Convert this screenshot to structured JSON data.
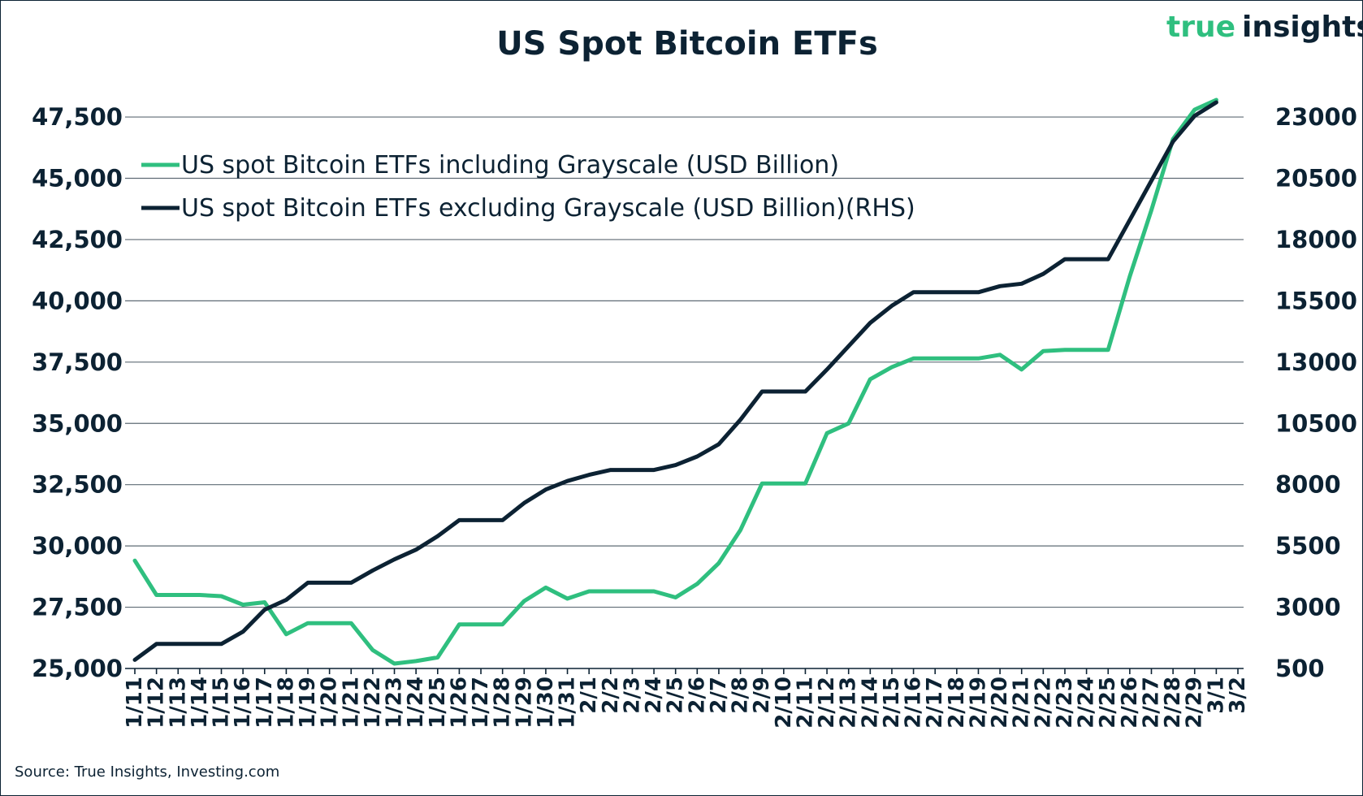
{
  "logo": {
    "part1": "true",
    "part2": "insights"
  },
  "source": "Source: True Insights, Investing.com",
  "colors": {
    "green": "#2fbf7f",
    "navy": "#0c2233",
    "grid": "#5f6b75"
  },
  "chart_data": {
    "type": "line",
    "title": "US Spot Bitcoin ETFs",
    "x": [
      "1/11",
      "1/12",
      "1/13",
      "1/14",
      "1/15",
      "1/16",
      "1/17",
      "1/18",
      "1/19",
      "1/20",
      "1/21",
      "1/22",
      "1/23",
      "1/24",
      "1/25",
      "1/26",
      "1/27",
      "1/28",
      "1/29",
      "1/30",
      "1/31",
      "2/1",
      "2/2",
      "2/3",
      "2/4",
      "2/5",
      "2/6",
      "2/7",
      "2/8",
      "2/9",
      "2/10",
      "2/11",
      "2/12",
      "2/13",
      "2/14",
      "2/15",
      "2/16",
      "2/17",
      "2/18",
      "2/19",
      "2/20",
      "2/21",
      "2/22",
      "2/23",
      "2/24",
      "2/25",
      "2/26",
      "2/27",
      "2/28",
      "2/29",
      "3/1",
      "3/2"
    ],
    "y_left": {
      "ylim": [
        25000,
        48000
      ],
      "ticks": [
        "25,000",
        "27,500",
        "30,000",
        "32,500",
        "35,000",
        "37,500",
        "40,000",
        "42,500",
        "45,000",
        "47,500"
      ]
    },
    "y_right": {
      "ylim": [
        500,
        23500
      ],
      "ticks": [
        "500",
        "3000",
        "5500",
        "8000",
        "10500",
        "13000",
        "15500",
        "18000",
        "20500",
        "23000"
      ]
    },
    "legend": "top-left",
    "series": [
      {
        "name": "US spot Bitcoin ETFs including Grayscale (USD Billion)",
        "axis": "left",
        "color": "#2fbf7f",
        "values": [
          29400,
          28000,
          28000,
          28000,
          27950,
          27600,
          27700,
          26400,
          26850,
          26850,
          26850,
          25750,
          25200,
          25300,
          25450,
          26800,
          26800,
          26800,
          27750,
          28300,
          27850,
          28150,
          28150,
          28150,
          28150,
          27900,
          28450,
          29300,
          30650,
          32550,
          32550,
          32550,
          34600,
          35000,
          36800,
          37300,
          37650,
          37650,
          37650,
          37650,
          37800,
          37200,
          37950,
          38000,
          38000,
          38000,
          41000,
          43700,
          46600,
          47800,
          48200,
          null
        ]
      },
      {
        "name": "US spot Bitcoin ETFs excluding Grayscale (USD Billion)(RHS)",
        "axis": "right",
        "color": "#0c2233",
        "values": [
          850,
          1500,
          1500,
          1500,
          1500,
          2000,
          2900,
          3300,
          4000,
          4000,
          4000,
          4500,
          4950,
          5350,
          5900,
          6550,
          6550,
          6550,
          7250,
          7800,
          8150,
          8400,
          8600,
          8600,
          8600,
          8800,
          9150,
          9650,
          10650,
          11800,
          11800,
          11800,
          12700,
          13650,
          14600,
          15300,
          15850,
          15850,
          15850,
          15850,
          16100,
          16200,
          16600,
          17200,
          17200,
          17200,
          18800,
          20400,
          22000,
          23050,
          23600,
          null
        ]
      }
    ]
  }
}
